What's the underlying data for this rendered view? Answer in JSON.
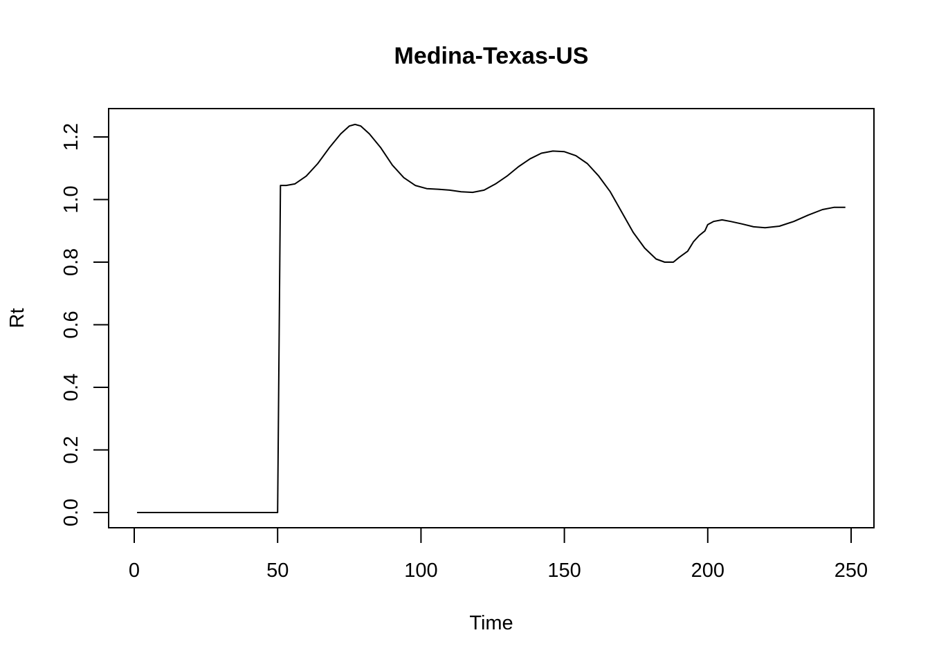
{
  "chart_data": {
    "type": "line",
    "title": "Medina-Texas-US",
    "xlabel": "Time",
    "ylabel": "Rt",
    "xlim": [
      1,
      248
    ],
    "ylim": [
      0,
      1.2
    ],
    "xticks": [
      0,
      50,
      100,
      150,
      200,
      250
    ],
    "yticks": [
      0.0,
      0.2,
      0.4,
      0.6,
      0.8,
      1.0,
      1.2
    ],
    "xtick_labels": [
      "0",
      "50",
      "100",
      "150",
      "200",
      "250"
    ],
    "ytick_labels": [
      "0.0",
      "0.2",
      "0.4",
      "0.6",
      "0.8",
      "1.0",
      "1.2"
    ],
    "grid": false,
    "series": [
      {
        "values_xy": [
          [
            1,
            0.0
          ],
          [
            10,
            0.0
          ],
          [
            20,
            0.0
          ],
          [
            30,
            0.0
          ],
          [
            40,
            0.0
          ],
          [
            50,
            0.0
          ],
          [
            51,
            1.045
          ],
          [
            53,
            1.045
          ],
          [
            56,
            1.05
          ],
          [
            60,
            1.075
          ],
          [
            64,
            1.115
          ],
          [
            68,
            1.165
          ],
          [
            72,
            1.21
          ],
          [
            75,
            1.235
          ],
          [
            77,
            1.24
          ],
          [
            79,
            1.235
          ],
          [
            82,
            1.21
          ],
          [
            86,
            1.165
          ],
          [
            90,
            1.11
          ],
          [
            94,
            1.07
          ],
          [
            98,
            1.045
          ],
          [
            102,
            1.035
          ],
          [
            106,
            1.033
          ],
          [
            110,
            1.03
          ],
          [
            114,
            1.025
          ],
          [
            118,
            1.023
          ],
          [
            122,
            1.03
          ],
          [
            126,
            1.05
          ],
          [
            130,
            1.075
          ],
          [
            134,
            1.105
          ],
          [
            138,
            1.13
          ],
          [
            142,
            1.148
          ],
          [
            146,
            1.155
          ],
          [
            150,
            1.153
          ],
          [
            154,
            1.14
          ],
          [
            158,
            1.115
          ],
          [
            162,
            1.075
          ],
          [
            166,
            1.025
          ],
          [
            170,
            0.96
          ],
          [
            174,
            0.895
          ],
          [
            178,
            0.845
          ],
          [
            182,
            0.81
          ],
          [
            185,
            0.8
          ],
          [
            188,
            0.8
          ],
          [
            190,
            0.815
          ],
          [
            193,
            0.835
          ],
          [
            195,
            0.865
          ],
          [
            197,
            0.885
          ],
          [
            199,
            0.9
          ],
          [
            200,
            0.92
          ],
          [
            202,
            0.93
          ],
          [
            205,
            0.935
          ],
          [
            208,
            0.93
          ],
          [
            212,
            0.922
          ],
          [
            216,
            0.913
          ],
          [
            220,
            0.91
          ],
          [
            225,
            0.915
          ],
          [
            230,
            0.93
          ],
          [
            235,
            0.95
          ],
          [
            240,
            0.968
          ],
          [
            244,
            0.975
          ],
          [
            248,
            0.975
          ]
        ]
      }
    ]
  }
}
